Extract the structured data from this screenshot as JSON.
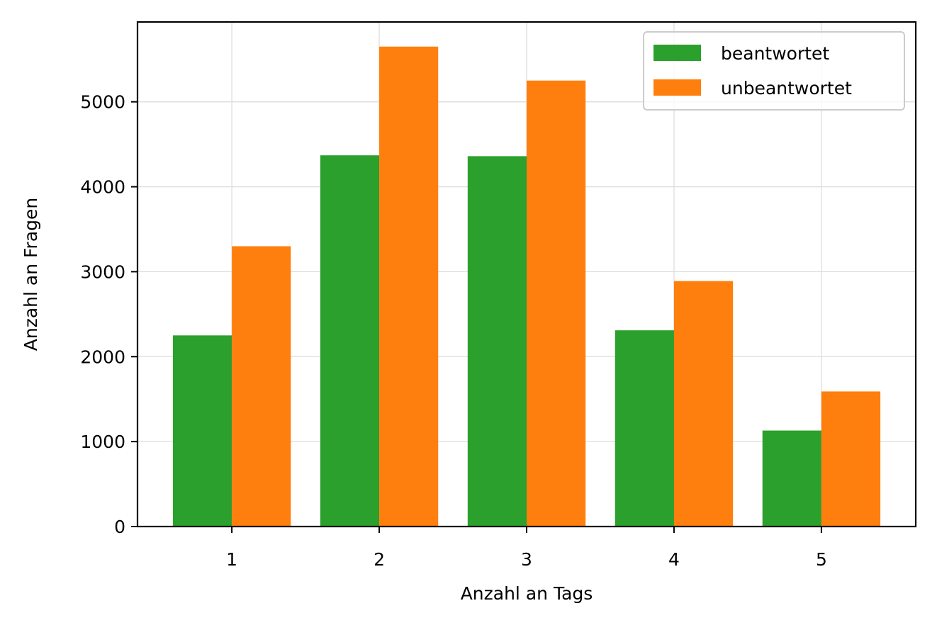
{
  "chart_data": {
    "type": "bar",
    "title": "",
    "xlabel": "Anzahl an Tags",
    "ylabel": "Anzahl an Fragen",
    "categories": [
      "1",
      "2",
      "3",
      "4",
      "5"
    ],
    "x": [
      1,
      2,
      3,
      4,
      5
    ],
    "xlim": [
      0.36,
      5.64
    ],
    "ylim": [
      0,
      5940
    ],
    "yticks": [
      0,
      1000,
      2000,
      3000,
      4000,
      5000
    ],
    "ytick_labels": [
      "0",
      "1000",
      "2000",
      "3000",
      "4000",
      "5000"
    ],
    "bar_width": 0.8,
    "grid": true,
    "legend_position": "top-right",
    "series": [
      {
        "name": "beantwortet",
        "color": "#2ca02c",
        "values": [
          2250,
          4370,
          4360,
          2310,
          1130
        ]
      },
      {
        "name": "unbeantwortet",
        "color": "#ff7f0e",
        "values": [
          3300,
          5650,
          5250,
          2890,
          1590
        ]
      }
    ]
  }
}
